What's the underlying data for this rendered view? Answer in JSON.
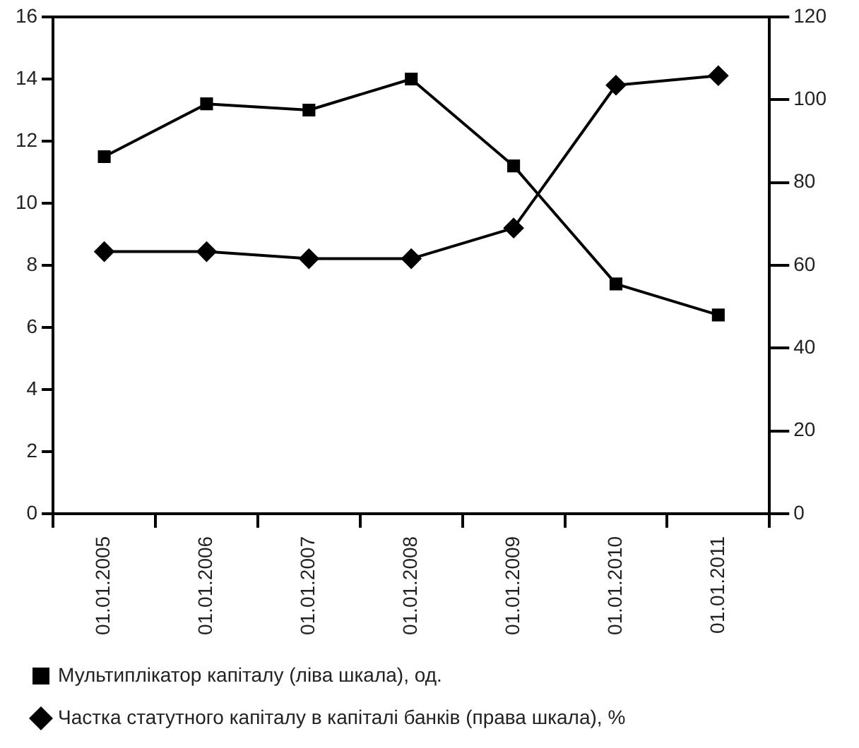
{
  "chart_data": {
    "type": "line",
    "categories": [
      "01.01.2005",
      "01.01.2006",
      "01.01.2007",
      "01.01.2008",
      "01.01.2009",
      "01.01.2010",
      "01.01.2011"
    ],
    "series": [
      {
        "name": "Мультиплікатор капіталу (ліва шкала), од.",
        "color": "#000000",
        "marker": "square",
        "axis": "y",
        "values": [
          11.5,
          13.2,
          13.0,
          14.0,
          11.2,
          7.4,
          6.4
        ]
      },
      {
        "name": "Частка статутного капіталу в капіталі банків (права шкала), %",
        "color": "#000000",
        "marker": "diamond",
        "axis": "y2",
        "values": [
          63.3,
          63.3,
          61.6,
          61.6,
          69.0,
          103.5,
          105.8
        ]
      }
    ],
    "ylim": [
      0,
      16
    ],
    "yticks": [
      0,
      2,
      4,
      6,
      8,
      10,
      12,
      14,
      16
    ],
    "y2lim": [
      0,
      120
    ],
    "y2ticks": [
      0,
      20,
      40,
      60,
      80,
      100,
      120
    ],
    "grid": false,
    "legend": "bottom",
    "line_style": "solid"
  }
}
